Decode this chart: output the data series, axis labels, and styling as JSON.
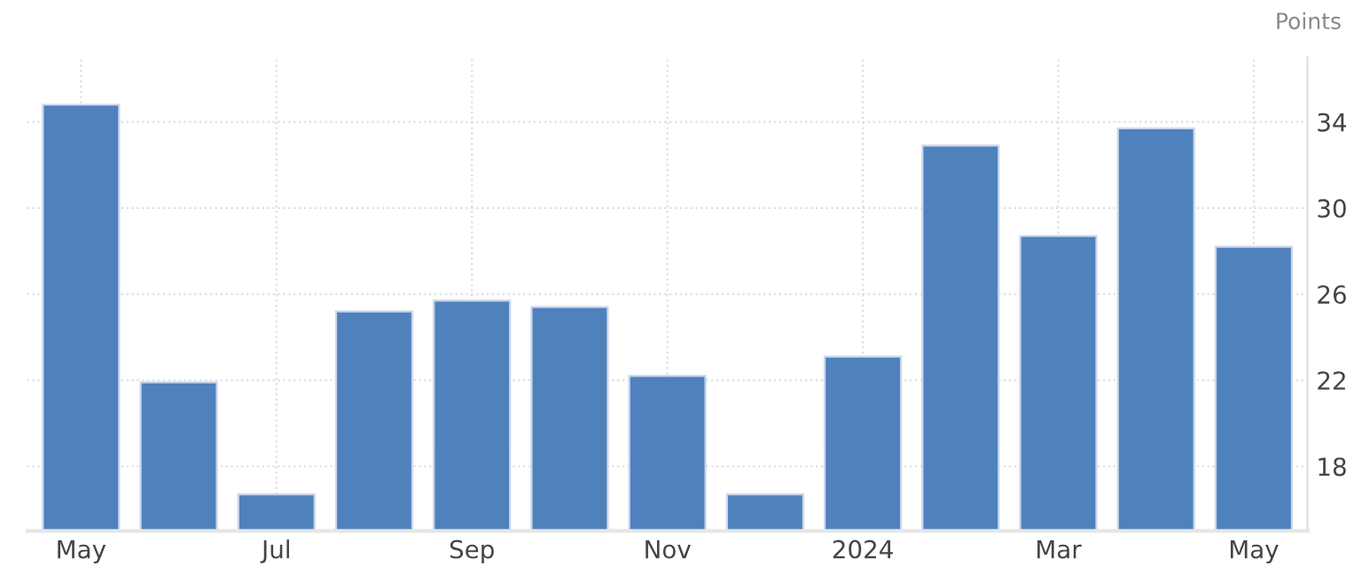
{
  "chart_data": {
    "type": "bar",
    "ylabel": "Points",
    "categories": [
      "May",
      null,
      "Jul",
      null,
      "Sep",
      null,
      "Nov",
      null,
      "2024",
      null,
      "Mar",
      null,
      "May"
    ],
    "series": [
      {
        "color": "#4f81bd",
        "values": [
          34.8,
          21.9,
          16.7,
          25.2,
          25.7,
          25.4,
          22.2,
          16.7,
          23.1,
          32.9,
          28.7,
          33.7,
          28.2
        ]
      }
    ],
    "ylim": [
      15,
      37
    ],
    "yticks": [
      18,
      22,
      26,
      30,
      34
    ],
    "grid": true
  }
}
